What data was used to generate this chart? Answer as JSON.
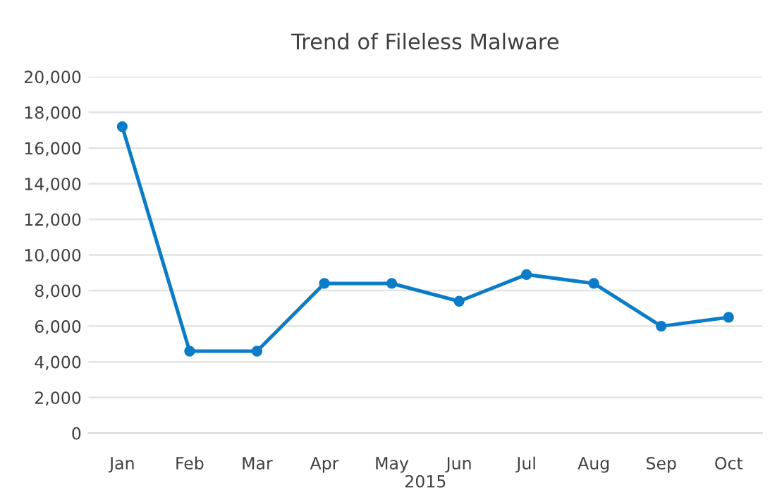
{
  "chart_data": {
    "type": "line",
    "title": "Trend of Fileless Malware",
    "xlabel": "2015",
    "categories": [
      "Jan",
      "Feb",
      "Mar",
      "Apr",
      "May",
      "Jun",
      "Jul",
      "Aug",
      "Sep",
      "Oct"
    ],
    "series": [
      {
        "color": "#0b7cc7",
        "values": [
          17200,
          4600,
          4600,
          8400,
          8400,
          7400,
          8900,
          8400,
          6000,
          6500
        ]
      }
    ],
    "ylim": [
      0,
      20000
    ],
    "yticks": [
      {
        "value": 0,
        "label": "0"
      },
      {
        "value": 2000,
        "label": "2,000"
      },
      {
        "value": 4000,
        "label": "4,000"
      },
      {
        "value": 6000,
        "label": "6,000"
      },
      {
        "value": 8000,
        "label": "8,000"
      },
      {
        "value": 10000,
        "label": "10,000"
      },
      {
        "value": 12000,
        "label": "12,000"
      },
      {
        "value": 14000,
        "label": "14,000"
      },
      {
        "value": 16000,
        "label": "16,000"
      },
      {
        "value": 18000,
        "label": "18,000"
      },
      {
        "value": 20000,
        "label": "20,000"
      }
    ],
    "grid": "y",
    "marker": "circle",
    "line_style": "solid"
  }
}
